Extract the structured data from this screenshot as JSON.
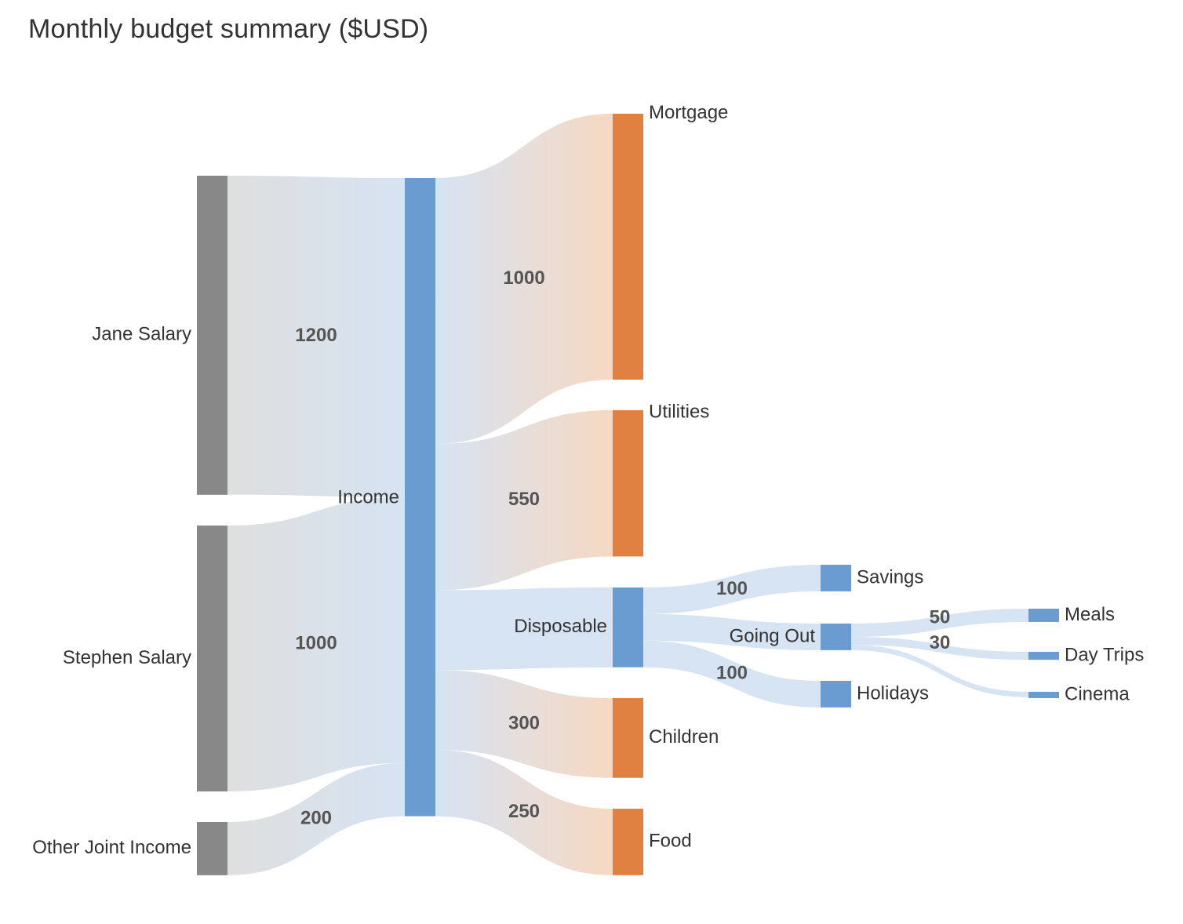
{
  "title": "Monthly budget summary ($USD)",
  "colors": {
    "source_node": "#888888",
    "flow_node": "#6a9bd1",
    "expense_node": "#e08142",
    "link_light_blue": "#d4e2f2",
    "link_grey": "#dddddd",
    "link_peach": "#f4d8c4",
    "label_text": "#333333",
    "value_text": "#555555"
  },
  "chart_data": {
    "type": "sankey",
    "title": "Monthly budget summary ($USD)",
    "nodes": [
      {
        "id": "jane",
        "label": "Jane Salary",
        "kind": "source"
      },
      {
        "id": "stephen",
        "label": "Stephen Salary",
        "kind": "source"
      },
      {
        "id": "other",
        "label": "Other Joint Income",
        "kind": "source"
      },
      {
        "id": "income",
        "label": "Income",
        "kind": "flow"
      },
      {
        "id": "mortgage",
        "label": "Mortgage",
        "kind": "expense"
      },
      {
        "id": "utilities",
        "label": "Utilities",
        "kind": "expense"
      },
      {
        "id": "disposable",
        "label": "Disposable",
        "kind": "flow"
      },
      {
        "id": "children",
        "label": "Children",
        "kind": "expense"
      },
      {
        "id": "food",
        "label": "Food",
        "kind": "expense"
      },
      {
        "id": "savings",
        "label": "Savings",
        "kind": "flow"
      },
      {
        "id": "goingout",
        "label": "Going Out",
        "kind": "flow"
      },
      {
        "id": "holidays",
        "label": "Holidays",
        "kind": "flow"
      },
      {
        "id": "meals",
        "label": "Meals",
        "kind": "flow"
      },
      {
        "id": "daytrips",
        "label": "Day Trips",
        "kind": "flow"
      },
      {
        "id": "cinema",
        "label": "Cinema",
        "kind": "flow"
      }
    ],
    "links": [
      {
        "source": "jane",
        "target": "income",
        "value": 1200,
        "label": "1200"
      },
      {
        "source": "stephen",
        "target": "income",
        "value": 1000,
        "label": "1000"
      },
      {
        "source": "other",
        "target": "income",
        "value": 200,
        "label": "200"
      },
      {
        "source": "income",
        "target": "mortgage",
        "value": 1000,
        "label": "1000"
      },
      {
        "source": "income",
        "target": "utilities",
        "value": 550,
        "label": "550"
      },
      {
        "source": "income",
        "target": "disposable",
        "value": 300,
        "label": ""
      },
      {
        "source": "income",
        "target": "children",
        "value": 300,
        "label": "300"
      },
      {
        "source": "income",
        "target": "food",
        "value": 250,
        "label": "250"
      },
      {
        "source": "disposable",
        "target": "savings",
        "value": 100,
        "label": "100"
      },
      {
        "source": "disposable",
        "target": "goingout",
        "value": 100,
        "label": ""
      },
      {
        "source": "disposable",
        "target": "holidays",
        "value": 100,
        "label": "100"
      },
      {
        "source": "goingout",
        "target": "meals",
        "value": 50,
        "label": "50"
      },
      {
        "source": "goingout",
        "target": "daytrips",
        "value": 30,
        "label": "30"
      },
      {
        "source": "goingout",
        "target": "cinema",
        "value": 20,
        "label": ""
      }
    ]
  }
}
